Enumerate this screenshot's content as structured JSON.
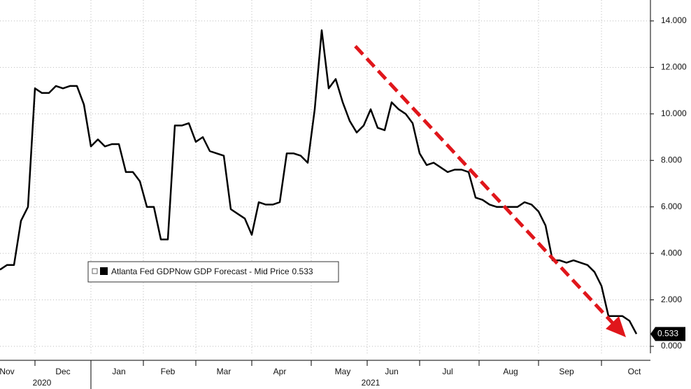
{
  "chart_data": {
    "type": "line",
    "categories": [
      null,
      "Nov",
      null,
      null,
      null,
      null,
      null,
      null,
      null,
      "Dec",
      null,
      null,
      null,
      null,
      null,
      null,
      null,
      "Jan",
      null,
      null,
      null,
      null,
      null,
      null,
      "Feb",
      null,
      null,
      null,
      null,
      null,
      null,
      null,
      "Mar",
      null,
      null,
      null,
      null,
      null,
      null,
      null,
      "Apr",
      null,
      null,
      null,
      null,
      null,
      null,
      null,
      null,
      "May",
      null,
      null,
      null,
      null,
      null,
      null,
      "Jun",
      null,
      null,
      null,
      null,
      null,
      null,
      null,
      "Jul",
      null,
      null,
      null,
      null,
      null,
      null,
      null,
      null,
      "Aug",
      null,
      null,
      null,
      null,
      null,
      null,
      null,
      "Sep",
      null,
      null,
      null,
      null,
      null,
      null,
      null,
      null,
      null,
      "Oct"
    ],
    "category_years": [
      null,
      null,
      null,
      null,
      null,
      null,
      "2020",
      null,
      null,
      null,
      null,
      null,
      null,
      null,
      null,
      null,
      null,
      null,
      null,
      null,
      null,
      null,
      null,
      null,
      null,
      null,
      null,
      null,
      null,
      null,
      null,
      null,
      null,
      null,
      null,
      null,
      null,
      null,
      null,
      null,
      null,
      null,
      null,
      null,
      null,
      null,
      null,
      null,
      null,
      null,
      null,
      null,
      null,
      "2021",
      null,
      null,
      null,
      null,
      null,
      null,
      null,
      null,
      null,
      null,
      null,
      null,
      null,
      null,
      null,
      null,
      null,
      null,
      null,
      null,
      null,
      null,
      null,
      null,
      null,
      null,
      null,
      null,
      null,
      null,
      null,
      null,
      null,
      null,
      null,
      null,
      null,
      null
    ],
    "series": [
      {
        "name": "Atlanta Fed GDPNow GDP Forecast - Mid Price",
        "color": "#000000",
        "last_label": "0.533",
        "values": [
          3.3,
          3.5,
          3.5,
          5.4,
          6.0,
          11.1,
          10.9,
          10.9,
          11.2,
          11.1,
          11.2,
          11.2,
          10.4,
          8.6,
          8.9,
          8.6,
          8.7,
          8.7,
          7.5,
          7.5,
          7.1,
          6.0,
          6.0,
          4.6,
          4.6,
          9.5,
          9.5,
          9.6,
          8.8,
          9.0,
          8.4,
          8.3,
          8.2,
          5.9,
          5.7,
          5.5,
          4.8,
          6.2,
          6.1,
          6.1,
          6.2,
          8.3,
          8.3,
          8.2,
          7.9,
          10.2,
          13.6,
          11.1,
          11.5,
          10.5,
          9.7,
          9.2,
          9.5,
          10.2,
          9.4,
          9.3,
          10.5,
          10.2,
          10.0,
          9.6,
          8.3,
          7.8,
          7.9,
          7.7,
          7.5,
          7.6,
          7.6,
          7.5,
          6.4,
          6.3,
          6.1,
          6.0,
          6.0,
          6.0,
          6.0,
          6.2,
          6.1,
          5.8,
          5.2,
          3.7,
          3.7,
          3.6,
          3.7,
          3.6,
          3.5,
          3.2,
          2.6,
          1.3,
          1.3,
          1.3,
          1.1,
          0.533
        ]
      }
    ],
    "ylim": [
      -0.3,
      14.9
    ],
    "yticks": [
      {
        "value": 0,
        "label": "0.000"
      },
      {
        "value": 2,
        "label": "2.000"
      },
      {
        "value": 4,
        "label": "4.000"
      },
      {
        "value": 6,
        "label": "6.000"
      },
      {
        "value": 8,
        "label": "8.000"
      },
      {
        "value": 10,
        "label": "10.000"
      },
      {
        "value": 12,
        "label": "12.000"
      },
      {
        "value": 14,
        "label": "14.000"
      }
    ],
    "grid": true
  }
}
